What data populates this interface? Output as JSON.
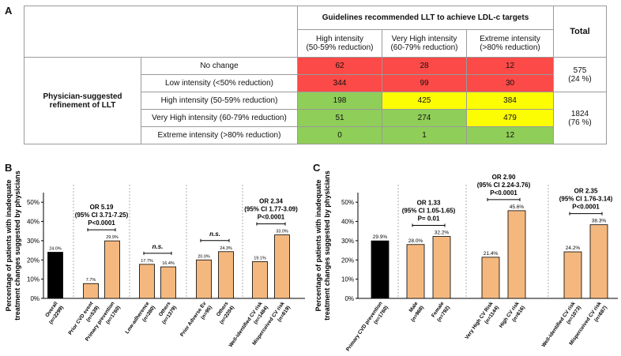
{
  "panels": {
    "a": "A",
    "b": "B",
    "c": "C"
  },
  "table": {
    "group_header": "Guidelines recommended LLT to achieve LDL-c targets",
    "total_header": "Total",
    "columns": [
      {
        "line1": "High intensity",
        "line2": "(50-59% reduction)"
      },
      {
        "line1": "Very High intensity",
        "line2": "(60-79% reduction)"
      },
      {
        "line1": "Extreme intensity",
        "line2": "(>80% reduction)"
      }
    ],
    "row_group_label": {
      "line1": "Physician-suggested",
      "line2": "refinement of LLT"
    },
    "rows": [
      {
        "label": "No change",
        "values": [
          "62",
          "28",
          "12"
        ],
        "colors": [
          "#fb4a47",
          "#fb4a47",
          "#fb4a47"
        ]
      },
      {
        "label": "Low intensity (<50% reduction)",
        "values": [
          "344",
          "99",
          "30"
        ],
        "colors": [
          "#fb4a47",
          "#fb4a47",
          "#fb4a47"
        ]
      },
      {
        "label": "High intensity (50-59% reduction)",
        "values": [
          "198",
          "425",
          "384"
        ],
        "colors": [
          "#8fce58",
          "#fcfc03",
          "#fcfc03"
        ]
      },
      {
        "label": "Very High intensity (60-79% reduction)",
        "values": [
          "51",
          "274",
          "479"
        ],
        "colors": [
          "#8fce58",
          "#8fce58",
          "#fcfc03"
        ]
      },
      {
        "label": "Extreme intensity (>80% reduction)",
        "values": [
          "0",
          "1",
          "12"
        ],
        "colors": [
          "#8fce58",
          "#8fce58",
          "#8fce58"
        ]
      }
    ],
    "totals": [
      {
        "value": "575",
        "pct": "(24 %)"
      },
      {
        "value": "1824",
        "pct": "(76 %)"
      }
    ]
  },
  "chart_data": [
    {
      "type": "bar",
      "panel": "B",
      "ylabel": "Percentage of patients with inadequate treatment changes suggested by physicians",
      "ylim": [
        0,
        55
      ],
      "yticks": [
        0,
        10,
        20,
        30,
        40,
        50
      ],
      "ytick_labels": [
        "0%",
        "10%",
        "20%",
        "30%",
        "40%",
        "50%"
      ],
      "categories": [
        "Overall (n=2299)",
        "Prior CVD event (n=539)",
        "Primary prevention (n=1760)",
        "Low-adherence (n=380)",
        "Others (n=1379)",
        "Prior Adverse Ev (n=95)",
        "Others (n=2204)",
        "Well-identified CV risk (n=1484)",
        "Misperceived CV risk (n=819)"
      ],
      "category_line1": [
        "Overall",
        "Prior CVD event",
        "Primary prevention",
        "Low-adherence",
        "Others",
        "Prior Adverse Ev",
        "Others",
        "Well-identified CV risk",
        "Misperceived CV risk"
      ],
      "category_line2": [
        "(n=2299)",
        "(n=539)",
        "(n=1760)",
        "(n=380)",
        "(n=1379)",
        "(n=95)",
        "(n=2204)",
        "(n=1484)",
        "(n=819)"
      ],
      "values": [
        24.0,
        7.7,
        29.9,
        17.7,
        16.4,
        20.0,
        24.3,
        19.1,
        33.0
      ],
      "value_labels": [
        "24.0%",
        "7.7%",
        "29.9%",
        "17.7%",
        "16.4%",
        "20.0%",
        "24.3%",
        "19.1%",
        "33.0%"
      ],
      "colors": [
        "#000000",
        "#f4b87f",
        "#f4b87f",
        "#f4b87f",
        "#f4b87f",
        "#f4b87f",
        "#f4b87f",
        "#f4b87f",
        "#f4b87f"
      ],
      "annotations": [
        {
          "bars": [
            1,
            2
          ],
          "lines": [
            "OR 5.19",
            "(95% CI 3.71-7.25)",
            "P<0.0001"
          ],
          "style": "bold"
        },
        {
          "bars": [
            3,
            4
          ],
          "lines": [
            "n.s."
          ],
          "style": "italic"
        },
        {
          "bars": [
            5,
            6
          ],
          "lines": [
            "n.s."
          ],
          "style": "italic"
        },
        {
          "bars": [
            7,
            8
          ],
          "lines": [
            "OR 2.34",
            "(95% CI 1.77-3.09)",
            "P<0.0001"
          ],
          "style": "bold"
        }
      ]
    },
    {
      "type": "bar",
      "panel": "C",
      "ylabel": "Percentage of patients with inadequate treatment changes suggested by physicians",
      "ylim": [
        0,
        55
      ],
      "yticks": [
        0,
        10,
        20,
        30,
        40,
        50
      ],
      "ytick_labels": [
        "0%",
        "10%",
        "20%",
        "30%",
        "40%",
        "50%"
      ],
      "categories": [
        "Primary CVD prevention (n=1760)",
        "Male (n=968)",
        "Female (n=792)",
        "Very High CV Risk (n=1144)",
        "High CV risk (n=616)",
        "Well-identified CV risk (n=1073)",
        "Misperceived CV risk (n=687)"
      ],
      "category_line1": [
        "Primary CVD prevention",
        "Male",
        "Female",
        "Very High CV Risk",
        "High CV risk",
        "Well-identified CV risk",
        "Misperceived CV risk"
      ],
      "category_line2": [
        "(n=1760)",
        "(n=968)",
        "(n=792)",
        "(n=1144)",
        "(n=616)",
        "(n=1073)",
        "(n=687)"
      ],
      "values": [
        29.9,
        28.0,
        32.2,
        21.4,
        45.6,
        24.2,
        38.3
      ],
      "value_labels": [
        "29.9%",
        "28.0%",
        "32.2%",
        "21.4%",
        "45.6%",
        "24.2%",
        "38.3%"
      ],
      "colors": [
        "#000000",
        "#f4b87f",
        "#f4b87f",
        "#f4b87f",
        "#f4b87f",
        "#f4b87f",
        "#f4b87f"
      ],
      "annotations": [
        {
          "bars": [
            1,
            2
          ],
          "lines": [
            "OR 1.33",
            "(95% CI 1.05-1.65)",
            "P= 0.01"
          ],
          "style": "bold"
        },
        {
          "bars": [
            3,
            4
          ],
          "lines": [
            "OR 2.90",
            "(95% CI 2.24-3.76)",
            "P<0.0001"
          ],
          "style": "bold"
        },
        {
          "bars": [
            5,
            6
          ],
          "lines": [
            "OR 2.35",
            "(95% CI 1.76-3.14)",
            "P<0.0001"
          ],
          "style": "bold"
        }
      ]
    }
  ]
}
